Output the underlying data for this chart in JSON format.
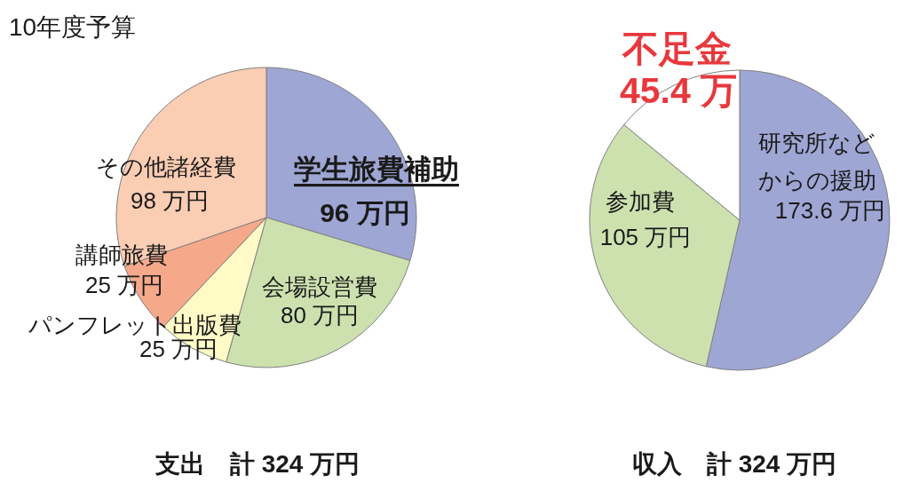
{
  "chart_data": [
    {
      "type": "pie",
      "title": "10年度予算",
      "categories": [
        "学生旅費補助",
        "会場設営費",
        "パンフレット出版費",
        "講師旅費",
        "その他諸経費"
      ],
      "values": [
        96,
        80,
        25,
        25,
        98
      ],
      "colors": [
        "#9ea6d4",
        "#cde1af",
        "#fffac6",
        "#f6a88a",
        "#fbcdb3"
      ],
      "value_labels": [
        "96 万円",
        "80 万円",
        "25 万円",
        "25 万円",
        "98 万円"
      ],
      "annotations": [
        "支出　計 324 万円"
      ]
    },
    {
      "type": "pie",
      "categories": [
        "研究所などからの援助",
        "参加費",
        "不足金"
      ],
      "values": [
        173.6,
        105,
        45.4
      ],
      "colors": [
        "#9ea6d4",
        "#cde1af",
        "#ffffff"
      ],
      "value_labels": [
        "173.6 万円",
        "105 万円",
        "45.4 万"
      ],
      "annotations": [
        "収入　計 324 万円"
      ]
    }
  ]
}
